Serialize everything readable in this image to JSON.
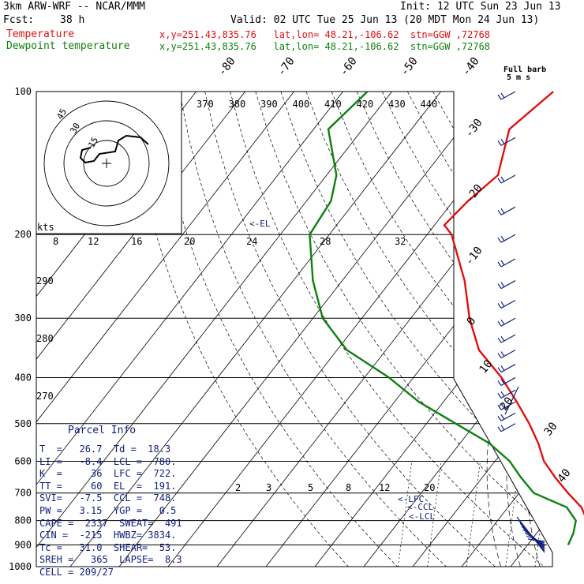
{
  "header": {
    "model": "3km ARW-WRF -- NCAR/MMM",
    "init": "Init: 12 UTC Sun 23 Jun 13",
    "fcst_label": "Fcst:",
    "fcst_value": "38 h",
    "valid": "Valid: 02 UTC Tue 25 Jun 13 (20 MDT Mon 24 Jun 13)",
    "temp_label": "Temperature",
    "temp_loc": "x,y=251.43,835.76   lat,lon= 48.21,-106.62  stn=GGW ,72768",
    "dew_label": "Dewpoint temperature",
    "dew_loc": "x,y=251.43,835.76   lat,lon= 48.21,-106.62  stn=GGW ,72768",
    "full_barb_1": "Full barb",
    "full_barb_2": "5 m s"
  },
  "parcel_info": {
    "title": "Parcel Info",
    "rows": [
      "T  =   26.7  Td =  18.3",
      "LI =   -8.4  LCL =  780.",
      "K  =     36  LFC =  722.",
      "TT =     60  EL  =  191.",
      "SVI=   -7.5  CCL =  748.",
      "PW =   3.15  YGP =   0.5",
      "CAPE =  2337  SWEAT=  491",
      "CIN =  -215  HWBZ= 3834.",
      "Tc =   31.0  SHEAR=  53.",
      "SREH =   365  LAPSE=  8.3",
      "CELL = 209/27"
    ]
  },
  "chart_data": {
    "type": "line",
    "title": "",
    "y_axis": {
      "label": "",
      "scale": "log-pressure",
      "ticks": [
        100,
        200,
        300,
        400,
        500,
        600,
        700,
        800,
        900,
        1000
      ]
    },
    "isotherm_labels": [
      "-80",
      "-70",
      "-60",
      "-50",
      "-40",
      "-30",
      "-20",
      "-10",
      "0",
      "10",
      "20",
      "30",
      "40"
    ],
    "theta_labels": [
      "370",
      "380",
      "390",
      "400",
      "410",
      "420",
      "430",
      "440"
    ],
    "dry_adiabat_labels": [
      "290",
      "280",
      "270"
    ],
    "mixing_ratio_labels": [
      "2",
      "3",
      "5",
      "8",
      "12",
      "20"
    ],
    "annotations": [
      "<-EL",
      "<-LFC",
      "<-CCL",
      "<-LCL"
    ],
    "hodograph": {
      "label": "kts",
      "speed_ticks": [
        "8",
        "12",
        "16",
        "20",
        "24",
        "28",
        "32"
      ],
      "ring_labels": [
        "15",
        "30",
        "45"
      ]
    },
    "series": [
      {
        "name": "Temperature",
        "color": "#e01010",
        "points": [
          [
            100,
            -57
          ],
          [
            120,
            -60
          ],
          [
            150,
            -55
          ],
          [
            170,
            -57
          ],
          [
            191,
            -58
          ],
          [
            200,
            -55
          ],
          [
            250,
            -45
          ],
          [
            300,
            -38
          ],
          [
            350,
            -31
          ],
          [
            400,
            -22
          ],
          [
            450,
            -15
          ],
          [
            500,
            -9
          ],
          [
            550,
            -4
          ],
          [
            600,
            0
          ],
          [
            650,
            5
          ],
          [
            700,
            10
          ],
          [
            750,
            15
          ],
          [
            780,
            17
          ],
          [
            830,
            22
          ],
          [
            880,
            25
          ],
          [
            900,
            26.7
          ]
        ]
      },
      {
        "name": "Dewpoint temperature",
        "color": "#108010",
        "points": [
          [
            100,
            -95
          ],
          [
            120,
            -97
          ],
          [
            150,
            -88
          ],
          [
            170,
            -85
          ],
          [
            200,
            -84
          ],
          [
            250,
            -76
          ],
          [
            300,
            -68
          ],
          [
            350,
            -58
          ],
          [
            400,
            -45
          ],
          [
            450,
            -35
          ],
          [
            500,
            -24
          ],
          [
            550,
            -14
          ],
          [
            600,
            -7
          ],
          [
            650,
            -2
          ],
          [
            700,
            3
          ],
          [
            750,
            12
          ],
          [
            800,
            16
          ],
          [
            850,
            17.5
          ],
          [
            900,
            18.3
          ]
        ]
      }
    ],
    "wind_barbs_pressures": [
      100,
      125,
      150,
      175,
      200,
      225,
      250,
      275,
      300,
      325,
      350,
      375,
      400,
      425,
      450,
      475,
      500
    ]
  }
}
